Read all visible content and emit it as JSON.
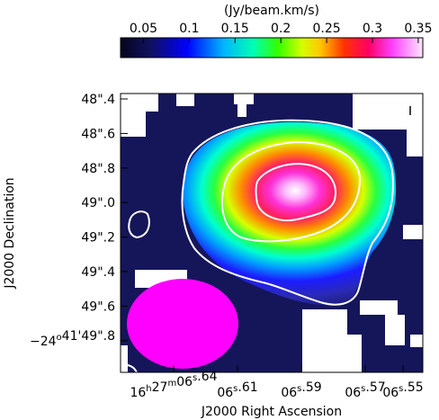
{
  "colorbar": {
    "label": "(Jy/beam.km/s)",
    "ticks": [
      "0.05",
      "0.1",
      "0.15",
      "0.2",
      "0.25",
      "0.3",
      "0.35"
    ],
    "range": [
      0.025,
      0.355
    ]
  },
  "axes": {
    "xlabel": "J2000 Right Ascension",
    "ylabel": "J2000 Declination",
    "x_ticks": [
      {
        "h": "16",
        "m": "27",
        "s": "06",
        "frac": ".64",
        "full": true
      },
      {
        "s": "06",
        "frac": ".61"
      },
      {
        "s": "06",
        "frac": ".59"
      },
      {
        "s": "06",
        "frac": ".57"
      },
      {
        "s": "06",
        "frac": ".55"
      }
    ],
    "y_ticks": [
      {
        "sec": "48",
        "frac": ".4"
      },
      {
        "sec": "48",
        "frac": ".6"
      },
      {
        "sec": "48",
        "frac": ".8"
      },
      {
        "sec": "49",
        "frac": ".0"
      },
      {
        "sec": "49",
        "frac": ".2"
      },
      {
        "sec": "49",
        "frac": ".4"
      },
      {
        "sec": "49",
        "frac": ".6"
      },
      {
        "deg": "−24",
        "amin": "41",
        "sec": "49",
        "frac": ".8",
        "full": true
      }
    ]
  },
  "chart_data": {
    "type": "heatmap",
    "x": [
      "16h27m06s.64",
      "06s.61",
      "06s.59",
      "06s.57",
      "06s.55"
    ],
    "y": [
      "48\".4",
      "48\".6",
      "48\".8",
      "49\".0",
      "49\".2",
      "49\".4",
      "49\".6",
      "-24°41'49\".8"
    ],
    "xlabel": "J2000 Right Ascension",
    "ylabel": "J2000 Declination",
    "colorbar_label": "(Jy/beam.km/s)",
    "colorbar_range": [
      0.025,
      0.355
    ],
    "colormap": "rainbow (black-blue-cyan-green-yellow-red-magenta-white)",
    "peak_value": 0.35,
    "contours": 3,
    "beam_color": "#ff00ff",
    "blank_color": "#ffffff"
  }
}
